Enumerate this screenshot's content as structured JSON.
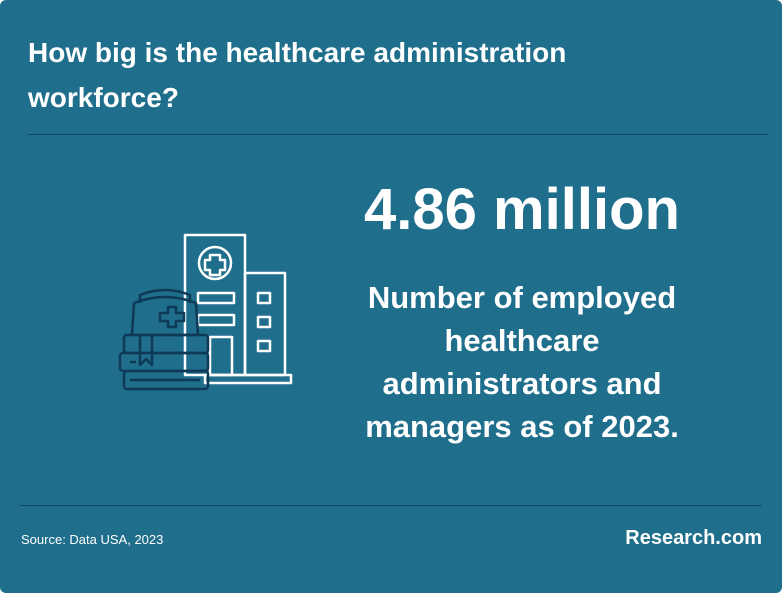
{
  "header": {
    "title": "How big is the healthcare administration workforce?"
  },
  "stat": {
    "value": "4.86 million",
    "description": "Number of employed healthcare administrators and managers as of 2023."
  },
  "footer": {
    "source": "Source: Data USA, 2023",
    "brand": "Research.com"
  }
}
